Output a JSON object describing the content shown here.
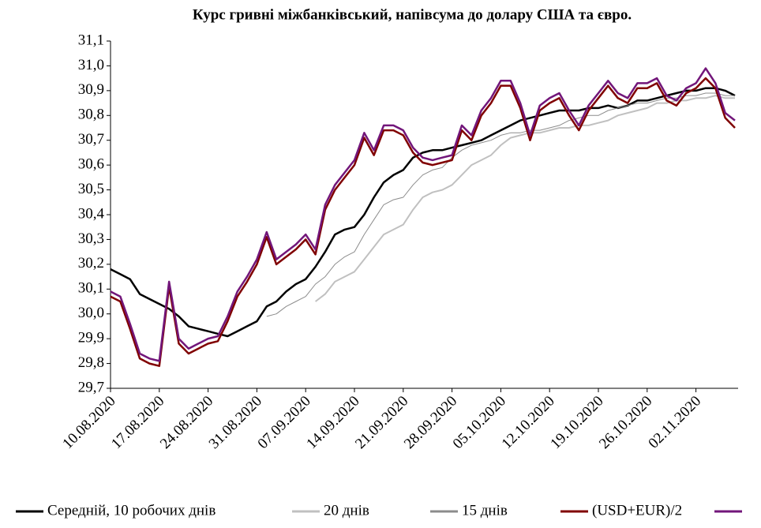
{
  "chart_data": {
    "type": "line",
    "title": "Курс гривні міжбанківський, напівсума до долару США та євро.",
    "categories": [
      "10.08.2020",
      null,
      null,
      null,
      null,
      "17.08.2020",
      null,
      null,
      null,
      null,
      "24.08.2020",
      null,
      null,
      null,
      null,
      "31.08.2020",
      null,
      null,
      null,
      null,
      "07.09.2020",
      null,
      null,
      null,
      null,
      "14.09.2020",
      null,
      null,
      null,
      null,
      "21.09.2020",
      null,
      null,
      null,
      null,
      "28.09.2020",
      null,
      null,
      null,
      null,
      "05.10.2020",
      null,
      null,
      null,
      null,
      "12.10.2020",
      null,
      null,
      null,
      null,
      "19.10.2020",
      null,
      null,
      null,
      null,
      "26.10.2020",
      null,
      null,
      null,
      null,
      "02.11.2020",
      null,
      null,
      null,
      null
    ],
    "ylim": [
      29.7,
      31.1
    ],
    "yticks": [
      {
        "value": 29.7,
        "label": "29,7"
      },
      {
        "value": 29.8,
        "label": "29,8"
      },
      {
        "value": 29.9,
        "label": "29,9"
      },
      {
        "value": 30.0,
        "label": "30,0"
      },
      {
        "value": 30.1,
        "label": "30,1"
      },
      {
        "value": 30.2,
        "label": "30,2"
      },
      {
        "value": 30.3,
        "label": "30,3"
      },
      {
        "value": 30.4,
        "label": "30,4"
      },
      {
        "value": 30.5,
        "label": "30,5"
      },
      {
        "value": 30.6,
        "label": "30,6"
      },
      {
        "value": 30.7,
        "label": "30,7"
      },
      {
        "value": 30.8,
        "label": "30,8"
      },
      {
        "value": 30.9,
        "label": "30,9"
      },
      {
        "value": 31.0,
        "label": "31,0"
      },
      {
        "value": 31.1,
        "label": "31,1"
      }
    ],
    "grid": false,
    "legend": "bottom",
    "series": [
      {
        "name": "Середній, 10 робочих днів",
        "color": "#000000",
        "values": [
          30.18,
          30.16,
          30.14,
          30.08,
          30.06,
          30.04,
          30.02,
          29.99,
          29.95,
          29.94,
          29.93,
          29.92,
          29.91,
          29.93,
          29.95,
          29.97,
          30.03,
          30.05,
          30.09,
          30.12,
          30.14,
          30.19,
          30.25,
          30.32,
          30.34,
          30.35,
          30.4,
          30.47,
          30.53,
          30.56,
          30.58,
          30.63,
          30.65,
          30.66,
          30.66,
          30.67,
          30.68,
          30.69,
          30.7,
          30.72,
          30.74,
          30.76,
          30.78,
          30.79,
          30.8,
          30.81,
          30.82,
          30.82,
          30.82,
          30.83,
          30.83,
          30.84,
          30.83,
          30.84,
          30.86,
          30.86,
          30.87,
          30.88,
          30.89,
          30.9,
          30.9,
          30.91,
          30.91,
          30.9,
          30.88
        ]
      },
      {
        "name": "20 днів",
        "color": "#c0c0c0",
        "values": [
          null,
          null,
          null,
          null,
          null,
          null,
          null,
          null,
          null,
          null,
          null,
          null,
          null,
          null,
          null,
          null,
          null,
          null,
          null,
          null,
          null,
          30.05,
          30.08,
          30.13,
          30.15,
          30.17,
          30.22,
          30.27,
          30.32,
          30.34,
          30.36,
          30.42,
          30.47,
          30.49,
          30.5,
          30.52,
          30.56,
          30.6,
          30.62,
          30.64,
          30.68,
          30.71,
          30.72,
          30.73,
          30.73,
          30.74,
          30.75,
          30.75,
          30.76,
          30.76,
          30.77,
          30.78,
          30.8,
          30.81,
          30.82,
          30.83,
          30.85,
          30.85,
          30.86,
          30.86,
          30.87,
          30.87,
          30.88,
          30.87,
          30.87
        ]
      },
      {
        "name": "15 днів",
        "color": "#8c8c8c",
        "values": [
          null,
          null,
          null,
          null,
          null,
          null,
          null,
          null,
          null,
          null,
          null,
          null,
          null,
          null,
          null,
          null,
          29.99,
          30.0,
          30.03,
          30.05,
          30.07,
          30.12,
          30.15,
          30.2,
          30.23,
          30.25,
          30.32,
          30.38,
          30.44,
          30.46,
          30.47,
          30.52,
          30.56,
          30.58,
          30.59,
          30.63,
          30.66,
          30.68,
          30.69,
          30.7,
          30.72,
          30.73,
          30.73,
          30.74,
          30.74,
          30.75,
          30.76,
          30.78,
          30.79,
          30.8,
          30.8,
          30.82,
          30.83,
          30.84,
          30.85,
          30.85,
          30.86,
          30.87,
          30.87,
          30.88,
          30.88,
          30.89,
          30.89,
          30.88,
          30.88
        ]
      },
      {
        "name": "(USD+EUR)/2",
        "color": "#800000",
        "values": [
          30.07,
          30.05,
          29.94,
          29.82,
          29.8,
          29.79,
          30.11,
          29.88,
          29.84,
          29.86,
          29.88,
          29.89,
          29.97,
          30.07,
          30.13,
          30.2,
          30.31,
          30.2,
          30.23,
          30.26,
          30.3,
          30.24,
          30.42,
          30.5,
          30.55,
          30.6,
          30.71,
          30.64,
          30.74,
          30.74,
          30.72,
          30.65,
          30.61,
          30.6,
          30.61,
          30.62,
          30.74,
          30.7,
          30.8,
          30.85,
          30.92,
          30.92,
          30.83,
          30.7,
          30.82,
          30.85,
          30.87,
          30.8,
          30.74,
          30.82,
          30.87,
          30.92,
          30.87,
          30.85,
          30.91,
          30.91,
          30.93,
          30.86,
          30.84,
          30.89,
          30.91,
          30.95,
          30.91,
          30.79,
          30.75
        ]
      },
      {
        "color": "#72167a",
        "values": [
          30.09,
          30.07,
          29.96,
          29.84,
          29.82,
          29.81,
          30.13,
          29.9,
          29.86,
          29.88,
          29.9,
          29.91,
          29.99,
          30.09,
          30.15,
          30.22,
          30.33,
          30.22,
          30.25,
          30.28,
          30.32,
          30.26,
          30.44,
          30.52,
          30.57,
          30.62,
          30.73,
          30.66,
          30.76,
          30.76,
          30.74,
          30.67,
          30.63,
          30.62,
          30.63,
          30.64,
          30.76,
          30.72,
          30.82,
          30.87,
          30.94,
          30.94,
          30.85,
          30.72,
          30.84,
          30.87,
          30.89,
          30.82,
          30.76,
          30.84,
          30.89,
          30.94,
          30.89,
          30.87,
          30.93,
          30.93,
          30.95,
          30.88,
          30.86,
          30.91,
          30.93,
          30.99,
          30.93,
          30.81,
          30.78
        ]
      }
    ]
  }
}
